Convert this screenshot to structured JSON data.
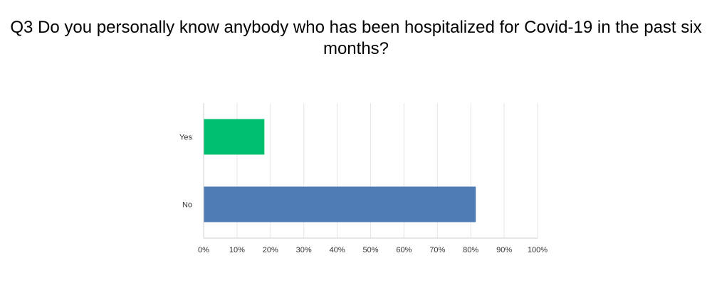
{
  "chart_data": {
    "type": "bar",
    "orientation": "horizontal",
    "title": "Q3 Do you personally know anybody who has been hospitalized for Covid-19 in the past six months?",
    "categories": [
      "Yes",
      "No"
    ],
    "values": [
      18.2,
      81.5
    ],
    "unit": "%",
    "bar_colors": [
      "#00bf6f",
      "#507cb6"
    ],
    "xlim": [
      0,
      100
    ],
    "xticks": [
      "0%",
      "10%",
      "20%",
      "30%",
      "40%",
      "50%",
      "60%",
      "70%",
      "80%",
      "90%",
      "100%"
    ],
    "grid": true,
    "legend": "none"
  }
}
